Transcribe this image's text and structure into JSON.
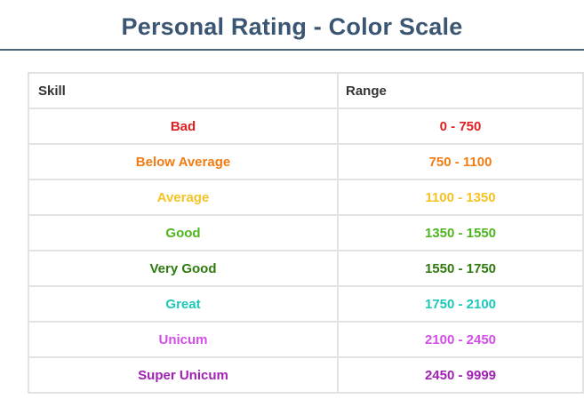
{
  "header": {
    "title": "Personal Rating - Color Scale"
  },
  "table": {
    "columns": [
      "Skill",
      "Range"
    ],
    "rows": [
      {
        "skill": "Bad",
        "range": "0 - 750",
        "color": "#e02020"
      },
      {
        "skill": "Below Average",
        "range": "750 - 1100",
        "color": "#f07c12"
      },
      {
        "skill": "Average",
        "range": "1100 - 1350",
        "color": "#f6c325"
      },
      {
        "skill": "Good",
        "range": "1350 - 1550",
        "color": "#4fb51e"
      },
      {
        "skill": "Very Good",
        "range": "1550 - 1750",
        "color": "#2e7a0e"
      },
      {
        "skill": "Great",
        "range": "1750 - 2100",
        "color": "#1cc8b8"
      },
      {
        "skill": "Unicum",
        "range": "2100 - 2450",
        "color": "#d24ee6"
      },
      {
        "skill": "Super Unicum",
        "range": "2450 - 9999",
        "color": "#a020b4"
      }
    ]
  }
}
